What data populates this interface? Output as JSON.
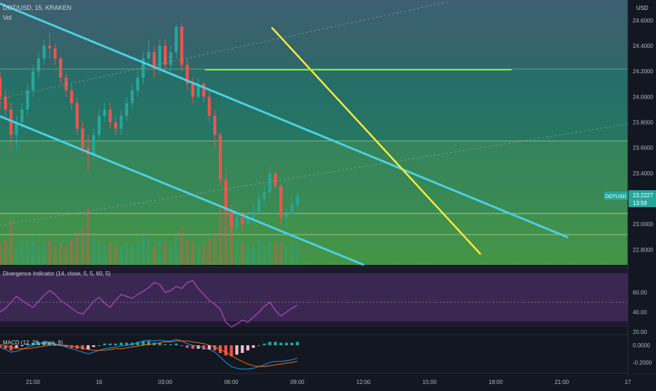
{
  "header": {
    "symbol_line": "DOT/USD, 15, KRAKEN",
    "vol_label": "Vol"
  },
  "colors": {
    "up": "#26a69a",
    "down": "#ef5350",
    "channel": "#4dd0e1",
    "trend": "#ffeb3b",
    "level": "#76ff03",
    "rsi": "#ab47bc",
    "macd": "#2196f3",
    "signal": "#ff6d00",
    "hist_up": "#26a69a",
    "hist_down": "#ef5350",
    "hist_light": "#f8bbd0"
  },
  "price_axis": {
    "currency": "USD",
    "ticks": [
      "24.6000",
      "24.4000",
      "24.2000",
      "24.0000",
      "23.8000",
      "23.6000",
      "23.4000",
      "23.2000",
      "23.0000",
      "22.8000"
    ]
  },
  "last_price": {
    "symbol": "DOTUSD",
    "price": "23.2227",
    "countdown": "13:59"
  },
  "divergence": {
    "title": "Divergence Indicator (14, close, 5, 5, 60, 5)",
    "ticks": [
      "60.00",
      "40.00",
      "20.00"
    ]
  },
  "macd": {
    "title": "MACD (12, 26, close, 9)",
    "ticks": [
      "0.0000",
      "-0.2000"
    ]
  },
  "time_axis": {
    "ticks": [
      "21:00",
      "16",
      "03:00",
      "06:00",
      "09:00",
      "12:00",
      "15:00",
      "18:00",
      "21:00",
      "17"
    ]
  },
  "chart_data": [
    {
      "type": "candlestick",
      "title": "DOT/USD, 15, KRAKEN",
      "ylim": [
        22.68,
        24.76
      ],
      "x_range": [
        "15 19:30",
        "17 00:00"
      ],
      "interval_minutes": 15,
      "x_start": "15 19:00",
      "ohlc": [
        [
          24.35,
          24.55,
          24.3,
          24.4
        ],
        [
          24.4,
          24.45,
          24.1,
          24.15
        ],
        [
          24.15,
          24.2,
          23.9,
          24.0
        ],
        [
          24.0,
          24.05,
          23.85,
          23.9
        ],
        [
          23.9,
          23.95,
          23.6,
          23.7
        ],
        [
          23.7,
          23.85,
          23.6,
          23.8
        ],
        [
          23.8,
          23.95,
          23.75,
          23.9
        ],
        [
          23.9,
          24.1,
          23.85,
          24.05
        ],
        [
          24.05,
          24.25,
          24.0,
          24.2
        ],
        [
          24.2,
          24.35,
          24.15,
          24.3
        ],
        [
          24.3,
          24.45,
          24.25,
          24.4
        ],
        [
          24.4,
          24.5,
          24.3,
          24.38
        ],
        [
          24.38,
          24.42,
          24.25,
          24.3
        ],
        [
          24.3,
          24.32,
          24.1,
          24.15
        ],
        [
          24.15,
          24.18,
          24.0,
          24.05
        ],
        [
          24.05,
          24.1,
          23.9,
          23.95
        ],
        [
          23.95,
          24.0,
          23.7,
          23.75
        ],
        [
          23.75,
          23.8,
          23.55,
          23.6
        ],
        [
          23.6,
          23.7,
          23.42,
          23.55
        ],
        [
          23.55,
          23.75,
          23.5,
          23.7
        ],
        [
          23.7,
          23.9,
          23.65,
          23.85
        ],
        [
          23.85,
          23.95,
          23.8,
          23.9
        ],
        [
          23.9,
          23.95,
          23.75,
          23.8
        ],
        [
          23.8,
          23.85,
          23.7,
          23.75
        ],
        [
          23.75,
          23.9,
          23.7,
          23.85
        ],
        [
          23.85,
          24.0,
          23.8,
          23.95
        ],
        [
          23.95,
          24.1,
          23.9,
          24.05
        ],
        [
          24.05,
          24.2,
          24.0,
          24.15
        ],
        [
          24.15,
          24.35,
          24.1,
          24.3
        ],
        [
          24.3,
          24.45,
          24.25,
          24.35
        ],
        [
          24.35,
          24.4,
          24.15,
          24.22
        ],
        [
          24.22,
          24.45,
          24.18,
          24.4
        ],
        [
          24.4,
          24.45,
          24.2,
          24.25
        ],
        [
          24.25,
          24.4,
          24.2,
          24.35
        ],
        [
          24.35,
          24.57,
          24.3,
          24.55
        ],
        [
          24.55,
          24.58,
          24.2,
          24.25
        ],
        [
          24.25,
          24.3,
          24.05,
          24.1
        ],
        [
          24.1,
          24.15,
          23.95,
          24.0
        ],
        [
          24.0,
          24.15,
          23.98,
          24.1
        ],
        [
          24.1,
          24.12,
          23.95,
          24.0
        ],
        [
          24.0,
          24.05,
          23.8,
          23.85
        ],
        [
          23.85,
          23.9,
          23.6,
          23.7
        ],
        [
          23.7,
          23.72,
          23.3,
          23.35
        ],
        [
          23.35,
          23.4,
          23.05,
          23.1
        ],
        [
          23.1,
          23.15,
          22.9,
          22.98
        ],
        [
          22.98,
          23.1,
          22.95,
          23.05
        ],
        [
          23.05,
          23.1,
          22.95,
          23.0
        ],
        [
          23.0,
          23.08,
          22.97,
          23.05
        ],
        [
          23.05,
          23.15,
          23.0,
          23.1
        ],
        [
          23.1,
          23.25,
          23.05,
          23.2
        ],
        [
          23.2,
          23.3,
          23.15,
          23.25
        ],
        [
          23.25,
          23.45,
          23.2,
          23.4
        ],
        [
          23.4,
          23.42,
          23.28,
          23.3
        ],
        [
          23.3,
          23.32,
          23.0,
          23.05
        ],
        [
          23.05,
          23.12,
          22.98,
          23.08
        ],
        [
          23.08,
          23.22,
          23.05,
          23.15
        ],
        [
          23.15,
          23.25,
          23.1,
          23.22
        ]
      ],
      "volume": [
        0.3,
        0.5,
        0.35,
        0.4,
        0.7,
        0.3,
        0.4,
        0.35,
        0.45,
        0.3,
        0.35,
        0.4,
        0.3,
        0.35,
        0.3,
        0.4,
        0.5,
        0.6,
        0.9,
        0.4,
        0.35,
        0.3,
        0.35,
        0.3,
        0.3,
        0.35,
        0.3,
        0.35,
        0.5,
        0.4,
        0.3,
        0.4,
        0.35,
        0.3,
        0.45,
        0.6,
        0.4,
        0.35,
        0.3,
        0.3,
        0.4,
        0.5,
        0.9,
        1.0,
        0.8,
        0.4,
        0.35,
        0.3,
        0.3,
        0.4,
        0.3,
        0.4,
        0.35,
        0.35,
        0.3,
        0.3,
        0.35
      ]
    },
    {
      "type": "line",
      "title": "Divergence Indicator (14, close, 5, 5, 60, 5)",
      "ylim": [
        18,
        85
      ],
      "values": [
        50,
        46,
        40,
        44,
        50,
        56,
        52,
        48,
        45,
        51,
        57,
        62,
        58,
        52,
        48,
        44,
        40,
        38,
        44,
        51,
        55,
        49,
        45,
        52,
        58,
        56,
        54,
        58,
        61,
        65,
        70,
        68,
        60,
        62,
        66,
        64,
        70,
        72,
        64,
        58,
        52,
        48,
        43,
        30,
        25,
        28,
        32,
        30,
        35,
        40,
        46,
        50,
        42,
        36,
        40,
        44,
        47
      ]
    },
    {
      "type": "line",
      "title": "MACD (12, 26, close, 9)",
      "ylim": [
        -0.33,
        0.1
      ],
      "macd": [
        0.02,
        0.01,
        -0.02,
        -0.05,
        -0.08,
        -0.07,
        -0.05,
        -0.02,
        0.0,
        0.02,
        0.03,
        0.03,
        0.02,
        0.0,
        -0.02,
        -0.04,
        -0.06,
        -0.08,
        -0.1,
        -0.08,
        -0.06,
        -0.04,
        -0.03,
        -0.02,
        -0.01,
        0.0,
        0.01,
        0.03,
        0.05,
        0.06,
        0.05,
        0.06,
        0.05,
        0.05,
        0.07,
        0.05,
        0.02,
        0.0,
        -0.01,
        -0.03,
        -0.05,
        -0.08,
        -0.14,
        -0.2,
        -0.25,
        -0.27,
        -0.28,
        -0.28,
        -0.27,
        -0.25,
        -0.23,
        -0.2,
        -0.19,
        -0.19,
        -0.18,
        -0.17,
        -0.15
      ],
      "signal": [
        0.03,
        0.02,
        0.01,
        -0.01,
        -0.02,
        -0.04,
        -0.04,
        -0.04,
        -0.03,
        -0.02,
        -0.01,
        0.0,
        0.0,
        0.0,
        0.0,
        -0.01,
        -0.02,
        -0.03,
        -0.05,
        -0.06,
        -0.06,
        -0.06,
        -0.05,
        -0.04,
        -0.04,
        -0.03,
        -0.02,
        -0.01,
        0.0,
        0.01,
        0.02,
        0.03,
        0.04,
        0.04,
        0.05,
        0.05,
        0.05,
        0.04,
        0.03,
        0.02,
        0.0,
        -0.02,
        -0.05,
        -0.08,
        -0.12,
        -0.16,
        -0.19,
        -0.22,
        -0.24,
        -0.25,
        -0.25,
        -0.24,
        -0.23,
        -0.22,
        -0.21,
        -0.2,
        -0.19
      ]
    }
  ]
}
